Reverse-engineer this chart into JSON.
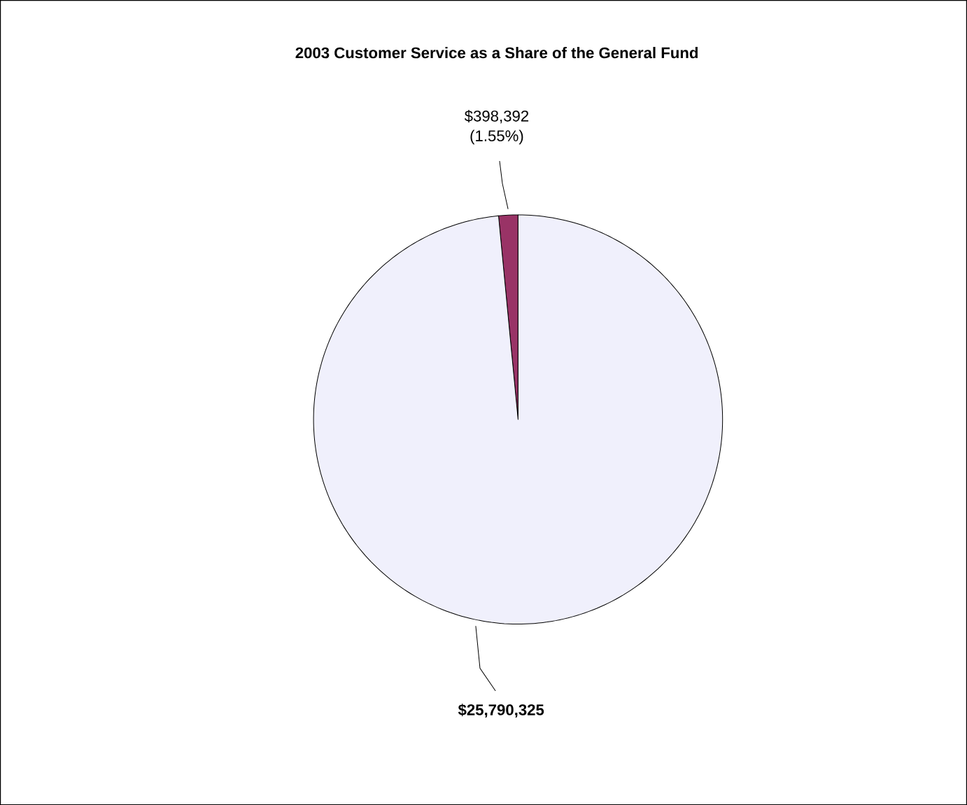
{
  "chart_data": {
    "type": "pie",
    "title": "2003 Customer Service as a Share of the General Fund",
    "categories": [
      null,
      null
    ],
    "values": [
      398392,
      25790325
    ],
    "colors": [
      "#993366",
      "#f0f0fc"
    ],
    "value_labels": [
      "$398,392 (1.55%)",
      "$25,790,325"
    ]
  }
}
